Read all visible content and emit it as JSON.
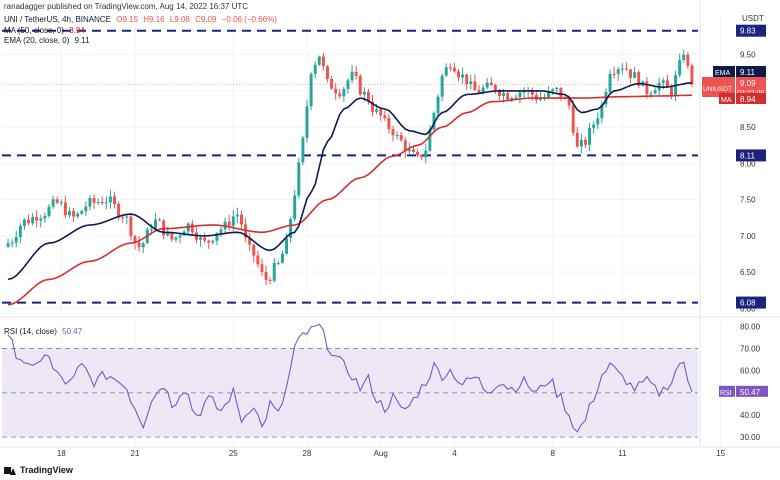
{
  "header": {
    "publisher": "ranadagger published on TradingView.com, Aug 14, 2022 16:37 UTC",
    "symbol": "UNI / TetherUS, 4h, BINANCE",
    "open": "O9.15",
    "high": "H9.16",
    "low": "L9.08",
    "close": "C9.09",
    "change": "−0.06 (−0.66%)",
    "ma_label": "MA (50, close, 0)",
    "ma_value": "8.94",
    "ema_label": "EMA (20, close, 0)",
    "ema_value": "9.11",
    "rsi_label": "RSI (14, close)",
    "rsi_value": "50.47",
    "currency": "USDT",
    "brand": "TradingView"
  },
  "colors": {
    "up": "#26a69a",
    "down": "#ef5350",
    "ma": "#d32f2f",
    "ema": "#0d1b4c",
    "rsi": "#7e57c2",
    "rsi_band": "#ede7f6",
    "level_line": "#1a237e",
    "grid": "#f0f3fa",
    "price_line": "#f44336"
  },
  "chart_data": [
    {
      "type": "candlestick",
      "title": "UNI / TetherUS, 4h, BINANCE",
      "ylabel": "USDT",
      "ylim": [
        5.95,
        9.95
      ],
      "y_ticks": [
        6.0,
        6.5,
        7.0,
        7.5,
        8.0,
        8.5,
        9.0,
        9.5
      ],
      "y_tick_labels": [
        "6.00",
        "6.50",
        "7.00",
        "7.50",
        "8.00",
        "8.50",
        "9.00",
        "9.50"
      ],
      "x_ticks": [
        18,
        21,
        25,
        28,
        "Aug",
        4,
        8,
        11,
        15
      ],
      "x_tick_labels": [
        "18",
        "21",
        "25",
        "28",
        "Aug",
        "4",
        "8",
        "11",
        "15"
      ],
      "x_tick_positions_bars": [
        13,
        31,
        55,
        73,
        91,
        109,
        133,
        150,
        174
      ],
      "horizontal_levels": [
        {
          "value": 9.83,
          "label": "9.83"
        },
        {
          "value": 8.11,
          "label": "8.11"
        },
        {
          "value": 6.08,
          "label": "6.08"
        }
      ],
      "last_price": {
        "label": "UNIUSDT",
        "value": "9.09",
        "countdown": "03:22:08"
      },
      "ema_tag": {
        "label": "EMA",
        "value": "9.11"
      },
      "ma_tag": {
        "label": "MA",
        "value": "8.94"
      },
      "close_keypoints": [
        [
          0,
          6.9
        ],
        [
          4,
          7.2
        ],
        [
          8,
          7.3
        ],
        [
          12,
          7.45
        ],
        [
          16,
          7.25
        ],
        [
          20,
          7.45
        ],
        [
          24,
          7.5
        ],
        [
          28,
          7.3
        ],
        [
          32,
          6.85
        ],
        [
          36,
          7.2
        ],
        [
          40,
          6.95
        ],
        [
          44,
          7.15
        ],
        [
          48,
          6.9
        ],
        [
          52,
          7.1
        ],
        [
          56,
          7.3
        ],
        [
          59,
          6.8
        ],
        [
          63,
          6.4
        ],
        [
          66,
          6.6
        ],
        [
          68,
          6.9
        ],
        [
          70,
          7.6
        ],
        [
          72,
          8.3
        ],
        [
          74,
          9.3
        ],
        [
          76,
          9.5
        ],
        [
          78,
          9.1
        ],
        [
          81,
          9.0
        ],
        [
          84,
          9.2
        ],
        [
          87,
          8.95
        ],
        [
          90,
          8.7
        ],
        [
          93,
          8.5
        ],
        [
          96,
          8.3
        ],
        [
          98,
          8.15
        ],
        [
          100,
          8.05
        ],
        [
          102,
          8.2
        ],
        [
          104,
          8.7
        ],
        [
          106,
          9.2
        ],
        [
          108,
          9.4
        ],
        [
          111,
          9.2
        ],
        [
          114,
          9.0
        ],
        [
          118,
          9.05
        ],
        [
          122,
          8.95
        ],
        [
          126,
          9.0
        ],
        [
          130,
          8.9
        ],
        [
          134,
          9.0
        ],
        [
          137,
          8.8
        ],
        [
          139,
          8.2
        ],
        [
          141,
          8.3
        ],
        [
          143,
          8.55
        ],
        [
          145,
          8.8
        ],
        [
          147,
          9.3
        ],
        [
          150,
          9.35
        ],
        [
          153,
          9.2
        ],
        [
          156,
          9.0
        ],
        [
          159,
          9.1
        ],
        [
          162,
          9.0
        ],
        [
          164,
          9.35
        ],
        [
          165,
          9.55
        ],
        [
          166,
          9.3
        ],
        [
          167,
          9.09
        ]
      ],
      "ema_20_keypoints": [
        [
          0,
          6.4
        ],
        [
          10,
          6.9
        ],
        [
          20,
          7.15
        ],
        [
          30,
          7.3
        ],
        [
          38,
          7.05
        ],
        [
          48,
          7.0
        ],
        [
          56,
          7.05
        ],
        [
          64,
          6.8
        ],
        [
          70,
          7.05
        ],
        [
          74,
          7.6
        ],
        [
          78,
          8.3
        ],
        [
          82,
          8.75
        ],
        [
          86,
          8.9
        ],
        [
          92,
          8.75
        ],
        [
          98,
          8.45
        ],
        [
          102,
          8.4
        ],
        [
          106,
          8.7
        ],
        [
          112,
          8.95
        ],
        [
          120,
          9.0
        ],
        [
          130,
          9.0
        ],
        [
          136,
          8.95
        ],
        [
          140,
          8.7
        ],
        [
          144,
          8.75
        ],
        [
          148,
          9.0
        ],
        [
          154,
          9.1
        ],
        [
          160,
          9.05
        ],
        [
          167,
          9.11
        ]
      ],
      "ma_50_keypoints": [
        [
          0,
          6.05
        ],
        [
          10,
          6.4
        ],
        [
          20,
          6.65
        ],
        [
          30,
          6.9
        ],
        [
          38,
          7.1
        ],
        [
          50,
          7.15
        ],
        [
          62,
          7.05
        ],
        [
          70,
          7.15
        ],
        [
          78,
          7.5
        ],
        [
          86,
          7.8
        ],
        [
          94,
          8.1
        ],
        [
          100,
          8.25
        ],
        [
          106,
          8.5
        ],
        [
          112,
          8.7
        ],
        [
          118,
          8.85
        ],
        [
          128,
          8.9
        ],
        [
          140,
          8.9
        ],
        [
          150,
          8.92
        ],
        [
          160,
          8.93
        ],
        [
          167,
          8.94
        ]
      ],
      "bars": 168
    },
    {
      "type": "line",
      "title": "RSI (14, close)",
      "ylim": [
        26,
        82
      ],
      "y_ticks": [
        30,
        40,
        50,
        60,
        70,
        80
      ],
      "y_tick_labels": [
        "30.00",
        "40.00",
        "50.00",
        "60.00",
        "70.00",
        "80.00"
      ],
      "band": [
        30,
        70
      ],
      "mid": 50,
      "last_value": "50.47",
      "keypoints": [
        [
          0,
          74
        ],
        [
          3,
          66
        ],
        [
          6,
          60
        ],
        [
          9,
          68
        ],
        [
          12,
          58
        ],
        [
          15,
          54
        ],
        [
          18,
          62
        ],
        [
          21,
          55
        ],
        [
          24,
          58
        ],
        [
          28,
          55
        ],
        [
          31,
          44
        ],
        [
          33,
          36
        ],
        [
          35,
          47
        ],
        [
          38,
          54
        ],
        [
          40,
          45
        ],
        [
          43,
          52
        ],
        [
          46,
          40
        ],
        [
          49,
          47
        ],
        [
          52,
          42
        ],
        [
          55,
          50
        ],
        [
          57,
          38
        ],
        [
          60,
          45
        ],
        [
          62,
          34
        ],
        [
          64,
          45
        ],
        [
          66,
          40
        ],
        [
          68,
          52
        ],
        [
          70,
          70
        ],
        [
          72,
          76
        ],
        [
          74,
          78
        ],
        [
          76,
          80
        ],
        [
          78,
          72
        ],
        [
          80,
          66
        ],
        [
          82,
          62
        ],
        [
          84,
          58
        ],
        [
          86,
          52
        ],
        [
          88,
          56
        ],
        [
          90,
          47
        ],
        [
          92,
          43
        ],
        [
          94,
          48
        ],
        [
          96,
          42
        ],
        [
          98,
          44
        ],
        [
          100,
          50
        ],
        [
          102,
          55
        ],
        [
          104,
          62
        ],
        [
          106,
          58
        ],
        [
          108,
          60
        ],
        [
          111,
          54
        ],
        [
          114,
          57
        ],
        [
          117,
          51
        ],
        [
          120,
          55
        ],
        [
          123,
          52
        ],
        [
          126,
          55
        ],
        [
          129,
          50
        ],
        [
          132,
          56
        ],
        [
          135,
          48
        ],
        [
          137,
          40
        ],
        [
          139,
          32
        ],
        [
          141,
          38
        ],
        [
          143,
          48
        ],
        [
          145,
          58
        ],
        [
          147,
          62
        ],
        [
          150,
          57
        ],
        [
          153,
          52
        ],
        [
          156,
          55
        ],
        [
          159,
          50
        ],
        [
          162,
          55
        ],
        [
          164,
          64
        ],
        [
          165,
          62
        ],
        [
          166,
          55
        ],
        [
          167,
          50.47
        ]
      ]
    }
  ]
}
